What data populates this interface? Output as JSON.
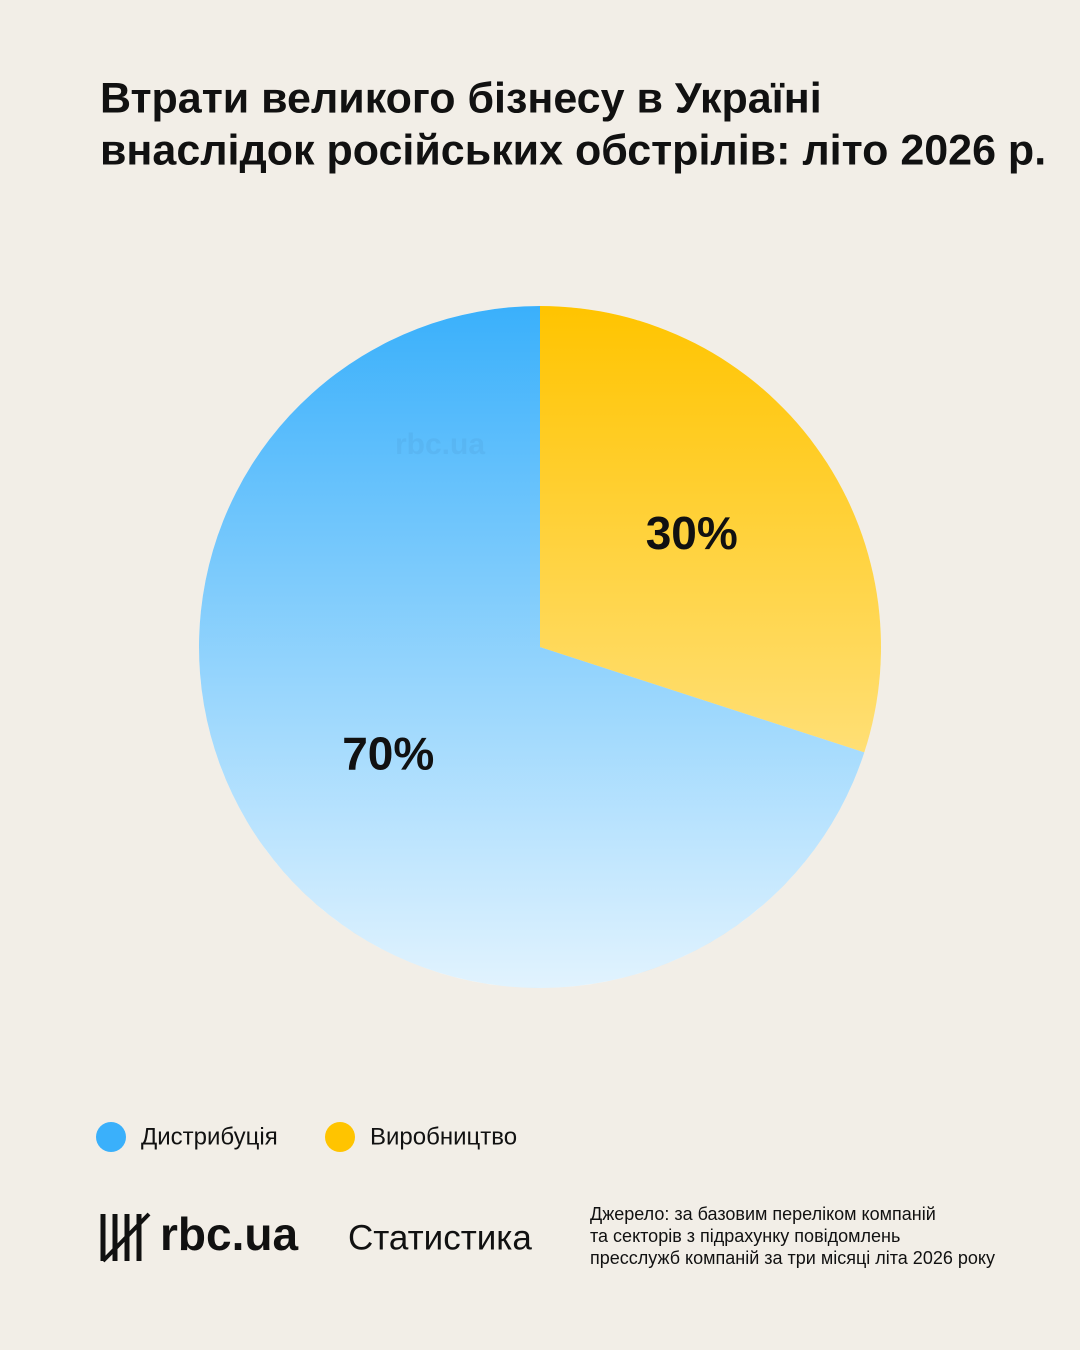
{
  "chart_data": {
    "type": "pie",
    "title": [
      "Втрати великого бізнесу в Україні",
      "внаслідок російських обстрілів: літо 2026 р."
    ],
    "categories": [
      "Дистрибуція",
      "Виробництво"
    ],
    "values": [
      70,
      30
    ],
    "value_labels": [
      "70%",
      "30%"
    ],
    "colors": [
      "#3ab0fb",
      "#ffc400"
    ],
    "watermark": "rbc.ua"
  },
  "footer": {
    "logo": "rbc.ua",
    "section": "Статистика",
    "source": [
      "Джерело: за базовим переліком компаній",
      "та секторів з підрахунку повідомлень",
      "пресслужб компаній за три місяці літа 2026 року"
    ]
  }
}
